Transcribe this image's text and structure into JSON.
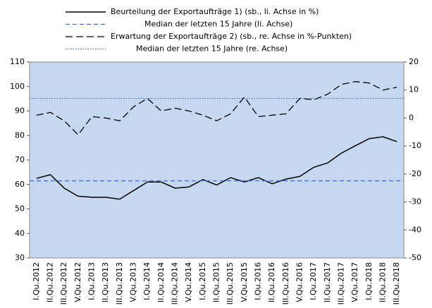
{
  "chart_data": {
    "type": "line",
    "categories": [
      "I.Qu.2012",
      "II.Qu.2012",
      "III.Qu.2012",
      "V.Qu.2012",
      "I.Qu.2013",
      "II.Qu.2013",
      "III.Qu.2013",
      "V.Qu.2013",
      "I.Qu.2014",
      "II.Qu.2014",
      "III.Qu.2014",
      "V.Qu.2014",
      "I.Qu.2015",
      "II.Qu.2015",
      "III.Qu.2015",
      "V.Qu.2015",
      "I.Qu.2016",
      "II.Qu.2016",
      "III.Qu.2016",
      "V.Qu.2016",
      "I.Qu.2017",
      "II.Qu.2017",
      "III.Qu.2017",
      "V.Qu.2017",
      "I.Qu.2018",
      "II.Qu.2018",
      "III.Qu.2018"
    ],
    "series": [
      {
        "name": "Beurteilung der Exportaufträge 1) (sb., li. Achse in %)",
        "color": "#000000",
        "style": "solid",
        "axis": "y",
        "values": [
          62.5,
          64,
          58.5,
          55.2,
          54.8,
          54.8,
          54,
          57.5,
          61,
          61,
          58.5,
          59,
          62,
          59.8,
          62.8,
          61,
          62.8,
          60.3,
          62.2,
          63.3,
          67,
          68.8,
          72.8,
          75.8,
          78.7,
          79.5,
          77.5
        ]
      },
      {
        "name": "Median der letzten 15 Jahre (li. Achse)",
        "color": "#4472c4",
        "style": "dashed",
        "axis": "y",
        "value": 61.5
      },
      {
        "name": "Erwartung der Exportaufträge 2) (sb., re. Achse in %-Punkten)",
        "color": "#000000",
        "style": "longdash",
        "axis": "y2",
        "values": [
          1,
          2,
          -1,
          -6,
          0.5,
          0,
          -1,
          4,
          7,
          2.5,
          3.5,
          2.5,
          1,
          -1,
          1.5,
          7.5,
          0.5,
          1,
          1.5,
          7,
          6.5,
          8.5,
          12,
          13,
          12.5,
          10,
          11
        ]
      },
      {
        "name": "Median der letzten 15 Jahre (re. Achse)",
        "color": "#4472c4",
        "style": "dotted",
        "axis": "y2",
        "value": 7
      }
    ],
    "ylim": [
      30,
      110
    ],
    "yticks": [
      30,
      40,
      50,
      60,
      70,
      80,
      90,
      100,
      110
    ],
    "y2lim": [
      -50,
      20
    ],
    "y2ticks": [
      -50,
      -40,
      -30,
      -20,
      -10,
      0,
      10,
      20
    ],
    "plot_background": "#c6d8f0"
  }
}
